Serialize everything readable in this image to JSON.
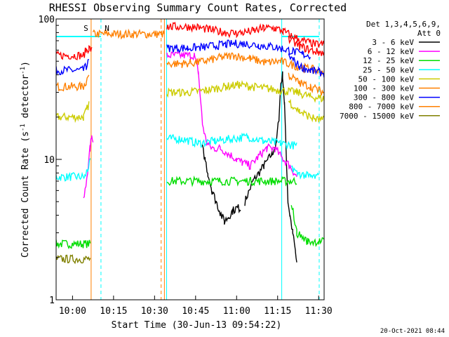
{
  "chart_data": {
    "type": "line",
    "title": "RHESSI Observing Summary Count Rates, Corrected",
    "xlabel": "Start Time (30-Jun-13 09:54:22)",
    "ylabel_main": "Corrected Count Rate (s",
    "ylabel_sup1": "-1",
    "ylabel_mid": " detector",
    "ylabel_sup2": "-1",
    "ylabel_end": ")",
    "y_scale": "log",
    "ylim": [
      1,
      100
    ],
    "xlim_min": [
      0,
      98
    ],
    "x_ticks": [
      {
        "min": 6,
        "label": "10:00"
      },
      {
        "min": 21,
        "label": "10:15"
      },
      {
        "min": 36,
        "label": "10:30"
      },
      {
        "min": 51,
        "label": "10:45"
      },
      {
        "min": 66,
        "label": "11:00"
      },
      {
        "min": 81,
        "label": "11:15"
      },
      {
        "min": 96,
        "label": "11:30"
      }
    ],
    "y_ticks": [
      {
        "value": 1,
        "label": "1"
      },
      {
        "value": 10,
        "label": "10"
      },
      {
        "value": 100,
        "label": "100"
      }
    ],
    "legend_header": [
      "Det 1,3,4,5,6,9,",
      "Att 0"
    ],
    "legend_placement": "right",
    "series": [
      {
        "name": "3 - 6 keV",
        "color": "#000000",
        "pts": [
          [
            69,
            5
          ],
          [
            72,
            7
          ],
          [
            76,
            9
          ],
          [
            79,
            11
          ],
          [
            80.5,
            13
          ],
          [
            81.5,
            20
          ],
          [
            82.2,
            35
          ],
          [
            82.8,
            40
          ],
          [
            83.5,
            25
          ],
          [
            84.2,
            10
          ],
          [
            84.8,
            5
          ],
          [
            85.5,
            4
          ],
          [
            86.5,
            3
          ],
          [
            87.5,
            2.2
          ],
          [
            88,
            1.8
          ]
        ]
      },
      {
        "name": "6 - 12 keV",
        "color": "#ff00ff",
        "pts": [
          [
            10,
            5
          ],
          [
            11.5,
            8
          ],
          [
            12.4,
            12
          ],
          [
            13,
            15
          ],
          [
            13.5,
            14
          ]
        ]
      },
      {
        "name": "12 - 25 keV",
        "color": "#00dd00",
        "pts": [
          [
            0,
            2.5
          ],
          [
            12.5,
            2.5
          ]
        ]
      },
      {
        "name": "25 - 50 keV",
        "color": "#00ffff",
        "pts": [
          [
            0,
            7.5
          ],
          [
            10.5,
            7.5
          ],
          [
            11.5,
            8.5
          ],
          [
            12.5,
            9.5
          ]
        ]
      },
      {
        "name": "50 - 100 keV",
        "color": "#cccc00",
        "pts": [
          [
            0,
            20
          ],
          [
            10,
            20
          ],
          [
            11,
            22
          ],
          [
            12,
            25
          ]
        ]
      },
      {
        "name": "100 - 300 keV",
        "color": "#ff8000",
        "pts": [
          [
            0,
            33
          ],
          [
            10,
            33
          ],
          [
            11,
            36
          ],
          [
            12,
            40
          ]
        ]
      },
      {
        "name": "300 - 800 keV",
        "color": "#0000ff",
        "pts": [
          [
            0,
            43
          ],
          [
            10,
            43
          ],
          [
            11,
            46
          ],
          [
            12,
            50
          ]
        ]
      },
      {
        "name": "800 - 7000 keV",
        "color": "#ff8000",
        "pts": [
          [
            13.5,
            78
          ],
          [
            39.5,
            78
          ]
        ]
      },
      {
        "name": "7000 - 15000 keV",
        "color": "#808000",
        "pts": [
          [
            0,
            1.95
          ],
          [
            12.5,
            1.95
          ]
        ]
      },
      {
        "name": "",
        "color": "#ff0000",
        "pts": [
          [
            0,
            55
          ],
          [
            10,
            55
          ],
          [
            11,
            60
          ],
          [
            12,
            62
          ],
          [
            13,
            60
          ]
        ]
      },
      {
        "name": "",
        "color": "#ff00ff",
        "pts": [
          [
            40.5,
            55
          ],
          [
            50.5,
            55
          ],
          [
            52,
            42
          ],
          [
            53.5,
            18
          ],
          [
            55,
            13
          ],
          [
            57,
            12
          ],
          [
            60,
            12
          ],
          [
            63,
            11
          ],
          [
            66,
            10
          ],
          [
            68,
            9.5
          ],
          [
            71,
            9
          ],
          [
            74,
            10.5
          ],
          [
            77,
            12
          ],
          [
            80,
            12
          ],
          [
            83,
            10
          ],
          [
            85.5,
            9
          ],
          [
            88,
            7.5
          ]
        ]
      },
      {
        "name": "",
        "color": "#00ffff",
        "pts": [
          [
            40.5,
            14
          ],
          [
            46,
            14
          ],
          [
            52,
            13
          ],
          [
            58,
            13.5
          ],
          [
            64,
            14
          ],
          [
            70,
            14.5
          ],
          [
            76,
            13.5
          ],
          [
            82,
            13
          ],
          [
            88,
            12.5
          ]
        ]
      },
      {
        "name": "",
        "color": "#000000",
        "pts": [
          [
            53.5,
            12
          ],
          [
            54.5,
            10
          ],
          [
            55.5,
            8
          ],
          [
            57,
            6
          ],
          [
            58.5,
            5
          ],
          [
            60,
            4.2
          ],
          [
            61.5,
            3.6
          ],
          [
            63,
            3.9
          ],
          [
            64.5,
            4.3
          ],
          [
            66,
            4.5
          ],
          [
            67.5,
            4.5
          ]
        ]
      },
      {
        "name": "",
        "color": "#00dd00",
        "pts": [
          [
            40.5,
            7
          ],
          [
            88,
            7
          ]
        ]
      },
      {
        "name": "",
        "color": "#cccc00",
        "pts": [
          [
            40.5,
            30
          ],
          [
            48,
            30
          ],
          [
            55,
            31
          ],
          [
            62,
            33
          ],
          [
            67,
            34
          ],
          [
            71,
            33
          ],
          [
            77,
            32
          ],
          [
            82,
            31
          ],
          [
            88,
            30
          ],
          [
            93,
            28
          ],
          [
            98,
            27
          ]
        ]
      },
      {
        "name": "",
        "color": "#ff8000",
        "pts": [
          [
            40.5,
            48
          ],
          [
            46,
            48
          ],
          [
            52,
            49
          ],
          [
            60,
            53
          ],
          [
            65,
            55
          ],
          [
            71,
            52
          ],
          [
            77,
            49
          ],
          [
            82,
            50
          ],
          [
            88,
            46
          ],
          [
            93,
            44
          ],
          [
            98,
            42
          ]
        ]
      },
      {
        "name": "",
        "color": "#0000ff",
        "pts": [
          [
            40.5,
            62
          ],
          [
            48,
            62
          ],
          [
            54,
            63
          ],
          [
            62,
            66
          ],
          [
            68,
            67
          ],
          [
            74,
            65
          ],
          [
            80,
            63
          ],
          [
            85,
            60
          ],
          [
            90,
            56
          ],
          [
            93,
            55
          ]
        ]
      },
      {
        "name": "",
        "color": "#ff0000",
        "pts": [
          [
            40.5,
            88
          ],
          [
            50,
            88
          ],
          [
            56,
            84
          ],
          [
            62,
            80
          ],
          [
            66,
            79
          ],
          [
            72,
            82
          ],
          [
            76,
            86
          ],
          [
            80,
            86
          ],
          [
            83,
            82
          ],
          [
            86,
            76
          ],
          [
            90,
            70
          ],
          [
            95,
            66
          ],
          [
            98,
            66
          ]
        ]
      },
      {
        "name": "",
        "color": "#0000ff",
        "pts": [
          [
            85,
            55
          ],
          [
            89,
            46
          ],
          [
            93,
            43
          ],
          [
            96,
            42
          ],
          [
            98,
            41
          ]
        ]
      },
      {
        "name": "",
        "color": "#ff0000",
        "pts": [
          [
            85,
            72
          ],
          [
            89,
            64
          ],
          [
            93,
            60
          ],
          [
            96,
            58
          ],
          [
            98,
            57
          ]
        ]
      },
      {
        "name": "",
        "color": "#ff8000",
        "pts": [
          [
            85,
            40
          ],
          [
            89,
            35
          ],
          [
            93,
            33
          ],
          [
            96,
            31
          ],
          [
            98,
            30
          ]
        ]
      },
      {
        "name": "",
        "color": "#cccc00",
        "pts": [
          [
            85,
            26
          ],
          [
            89,
            22
          ],
          [
            93,
            20
          ],
          [
            96,
            19
          ],
          [
            98,
            19
          ]
        ]
      },
      {
        "name": "",
        "color": "#00ffff",
        "pts": [
          [
            86,
            9
          ],
          [
            88,
            8
          ],
          [
            93,
            7.5
          ],
          [
            96,
            7.5
          ]
        ]
      },
      {
        "name": "",
        "color": "#00dd00",
        "pts": [
          [
            86,
            5
          ],
          [
            88,
            3
          ],
          [
            92,
            2.6
          ],
          [
            96,
            2.6
          ],
          [
            98,
            2.6
          ]
        ]
      }
    ],
    "vlines": [
      {
        "min": 0,
        "color": "#00ffff",
        "dashed": false
      },
      {
        "min": 40.4,
        "color": "#00ffff",
        "dashed": false
      },
      {
        "min": 82.5,
        "color": "#00ffff",
        "dashed": false
      },
      {
        "min": 12.8,
        "color": "#ff8000",
        "dashed": false
      },
      {
        "min": 39.6,
        "color": "#ff8000",
        "dashed": false
      },
      {
        "min": 16.4,
        "color": "#00ffff",
        "dashed": true
      },
      {
        "min": 38.4,
        "color": "#ff8000",
        "dashed": true
      },
      {
        "min": 96.2,
        "color": "#00ffff",
        "dashed": true
      }
    ],
    "hsegments": [
      {
        "x1": 0,
        "x2": 16.4,
        "y": 75,
        "color": "#00ffff"
      },
      {
        "x1": 82.5,
        "x2": 96.2,
        "y": 75,
        "color": "#00ffff"
      }
    ],
    "markers": [
      {
        "min": 10.9,
        "label": "S",
        "color": "#ff8000"
      },
      {
        "min": 18.6,
        "label": "N",
        "color": "#00ffff"
      }
    ],
    "timestamp": "20-Oct-2021 08:44"
  }
}
